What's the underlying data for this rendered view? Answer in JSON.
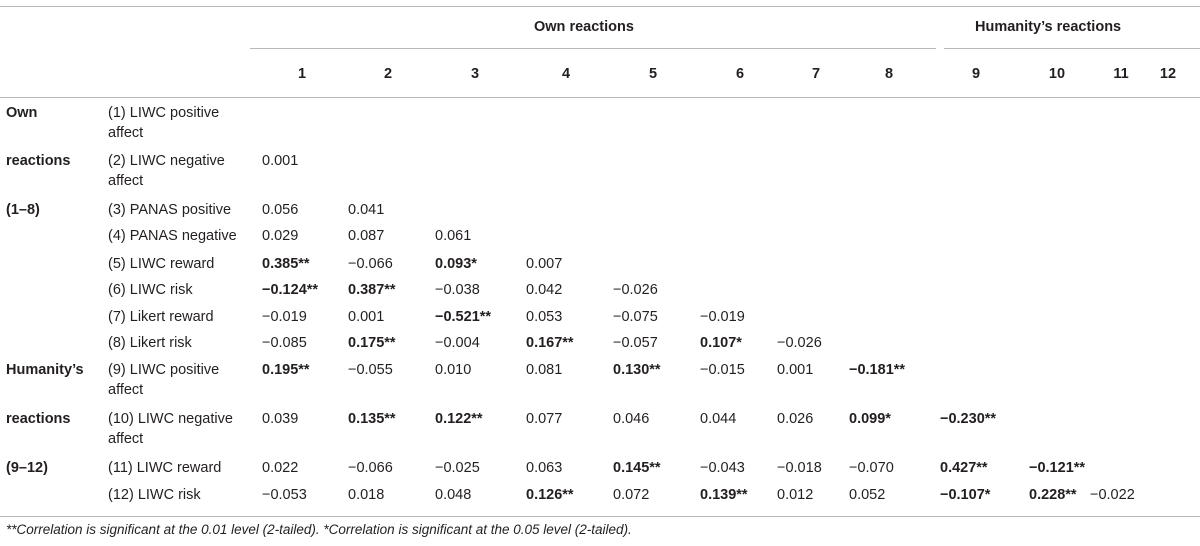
{
  "header": {
    "group_own": "Own reactions",
    "group_humanity": "Humanity’s reactions",
    "columns": [
      "1",
      "2",
      "3",
      "4",
      "5",
      "6",
      "7",
      "8",
      "9",
      "10",
      "11",
      "12"
    ]
  },
  "groups": [
    {
      "lines": [
        "Own",
        "reactions",
        "(1–8)"
      ]
    },
    {
      "lines": [
        "Humanity’s",
        "reactions",
        "(9–12)"
      ]
    }
  ],
  "rows": [
    {
      "label": [
        "(1) LIWC positive",
        "affect"
      ],
      "cells": []
    },
    {
      "label": [
        "(2) LIWC negative",
        "affect"
      ],
      "cells": [
        {
          "v": "0.001",
          "s": false
        }
      ]
    },
    {
      "label": [
        "(3) PANAS positive"
      ],
      "cells": [
        {
          "v": "0.056",
          "s": false
        },
        {
          "v": "0.041",
          "s": false
        }
      ]
    },
    {
      "label": [
        "(4) PANAS negative"
      ],
      "cells": [
        {
          "v": "0.029",
          "s": false
        },
        {
          "v": "0.087",
          "s": false
        },
        {
          "v": "0.061",
          "s": false
        }
      ]
    },
    {
      "label": [
        "(5) LIWC reward"
      ],
      "cells": [
        {
          "v": "0.385**",
          "s": true
        },
        {
          "v": "−0.066",
          "s": false
        },
        {
          "v": "0.093*",
          "s": true
        },
        {
          "v": "0.007",
          "s": false
        }
      ]
    },
    {
      "label": [
        "(6) LIWC risk"
      ],
      "cells": [
        {
          "v": "−0.124**",
          "s": true
        },
        {
          "v": "0.387**",
          "s": true
        },
        {
          "v": "−0.038",
          "s": false
        },
        {
          "v": "0.042",
          "s": false
        },
        {
          "v": "−0.026",
          "s": false
        }
      ]
    },
    {
      "label": [
        "(7) Likert reward"
      ],
      "cells": [
        {
          "v": "−0.019",
          "s": false
        },
        {
          "v": "0.001",
          "s": false
        },
        {
          "v": "−0.521**",
          "s": true
        },
        {
          "v": "0.053",
          "s": false
        },
        {
          "v": "−0.075",
          "s": false
        },
        {
          "v": "−0.019",
          "s": false
        }
      ]
    },
    {
      "label": [
        "(8) Likert risk"
      ],
      "cells": [
        {
          "v": "−0.085",
          "s": false
        },
        {
          "v": "0.175**",
          "s": true
        },
        {
          "v": "−0.004",
          "s": false
        },
        {
          "v": "0.167**",
          "s": true
        },
        {
          "v": "−0.057",
          "s": false
        },
        {
          "v": "0.107*",
          "s": true
        },
        {
          "v": "−0.026",
          "s": false
        }
      ]
    },
    {
      "label": [
        "(9) LIWC positive",
        "affect"
      ],
      "cells": [
        {
          "v": "0.195**",
          "s": true
        },
        {
          "v": "−0.055",
          "s": false
        },
        {
          "v": "0.010",
          "s": false
        },
        {
          "v": "0.081",
          "s": false
        },
        {
          "v": "0.130**",
          "s": true
        },
        {
          "v": "−0.015",
          "s": false
        },
        {
          "v": "0.001",
          "s": false
        },
        {
          "v": "−0.181**",
          "s": true
        }
      ]
    },
    {
      "label": [
        "(10) LIWC negative",
        "affect"
      ],
      "cells": [
        {
          "v": "0.039",
          "s": false
        },
        {
          "v": "0.135**",
          "s": true
        },
        {
          "v": "0.122**",
          "s": true
        },
        {
          "v": "0.077",
          "s": false
        },
        {
          "v": "0.046",
          "s": false
        },
        {
          "v": "0.044",
          "s": false
        },
        {
          "v": "0.026",
          "s": false
        },
        {
          "v": "0.099*",
          "s": true
        },
        {
          "v": "−0.230**",
          "s": true
        }
      ]
    },
    {
      "label": [
        "(11) LIWC reward"
      ],
      "cells": [
        {
          "v": "0.022",
          "s": false
        },
        {
          "v": "−0.066",
          "s": false
        },
        {
          "v": "−0.025",
          "s": false
        },
        {
          "v": "0.063",
          "s": false
        },
        {
          "v": "0.145**",
          "s": true
        },
        {
          "v": "−0.043",
          "s": false
        },
        {
          "v": "−0.018",
          "s": false
        },
        {
          "v": "−0.070",
          "s": false
        },
        {
          "v": "0.427**",
          "s": true
        },
        {
          "v": "−0.121**",
          "s": true
        }
      ]
    },
    {
      "label": [
        "(12) LIWC risk"
      ],
      "cells": [
        {
          "v": "−0.053",
          "s": false
        },
        {
          "v": "0.018",
          "s": false
        },
        {
          "v": "0.048",
          "s": false
        },
        {
          "v": "0.126**",
          "s": true
        },
        {
          "v": "0.072",
          "s": false
        },
        {
          "v": "0.139**",
          "s": true
        },
        {
          "v": "0.012",
          "s": false
        },
        {
          "v": "0.052",
          "s": false
        },
        {
          "v": "−0.107*",
          "s": true
        },
        {
          "v": "0.228**",
          "s": true
        },
        {
          "v": "−0.022",
          "s": false
        }
      ]
    }
  ],
  "footnote": "**Correlation is significant at the 0.01 level (2-tailed). *Correlation is significant at the 0.05 level (2-tailed)."
}
